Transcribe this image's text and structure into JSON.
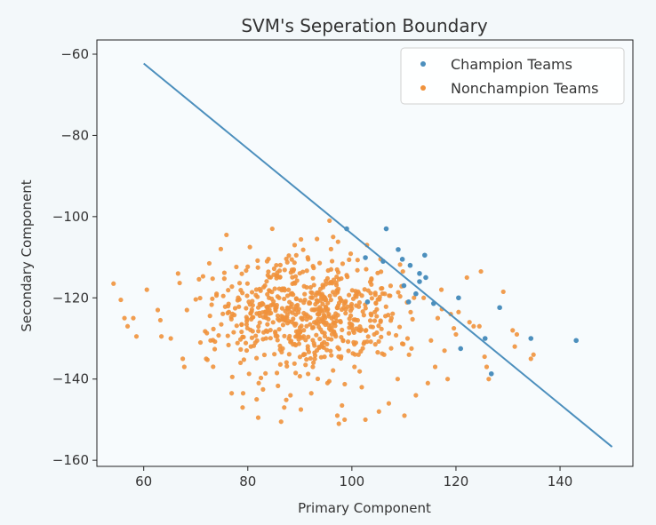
{
  "colors": {
    "background": "#f3f8fa",
    "champion": "#4c8fbd",
    "nonchampion": "#f0923c",
    "boundary": "#4c8fbd"
  },
  "chart_data": {
    "type": "scatter",
    "title": "SVM's Seperation Boundary",
    "xlabel": "Primary Component",
    "ylabel": "Secondary Component",
    "xlim": [
      51,
      154
    ],
    "ylim": [
      -161.5,
      -56.5
    ],
    "xticks": [
      60,
      80,
      100,
      120,
      140
    ],
    "yticks": [
      -60,
      -80,
      -100,
      -120,
      -140,
      -160
    ],
    "grid": false,
    "legend": "top-right",
    "legend_entries": [
      "Champion Teams",
      "Nonchampion Teams"
    ],
    "boundary_line": {
      "x": [
        60,
        150
      ],
      "y": [
        -62.3,
        -156.7
      ]
    },
    "series": [
      {
        "name": "Champion Teams",
        "points": [
          [
            99,
            -103
          ],
          [
            106.6,
            -103
          ],
          [
            102.6,
            -110.1
          ],
          [
            108.9,
            -108.1
          ],
          [
            109.7,
            -110.5
          ],
          [
            114,
            -109.5
          ],
          [
            106,
            -111
          ],
          [
            111.2,
            -112
          ],
          [
            113,
            -114
          ],
          [
            114.2,
            -115
          ],
          [
            110,
            -117
          ],
          [
            112.3,
            -119
          ],
          [
            115.7,
            -121.4
          ],
          [
            120.5,
            -120
          ],
          [
            110.9,
            -121
          ],
          [
            103,
            -121
          ],
          [
            128.4,
            -122.4
          ],
          [
            125.6,
            -130
          ],
          [
            120.9,
            -132.5
          ],
          [
            126.8,
            -138.7
          ],
          [
            134.4,
            -130
          ],
          [
            143.1,
            -130.5
          ],
          [
            113,
            -116
          ]
        ]
      },
      {
        "name": "Nonchampion Teams",
        "generator": "scatter cloud centred near (92, -124), spread x 54–135, y -151 to -101",
        "points": [
          [
            54.2,
            -116.5
          ],
          [
            55.6,
            -120.5
          ],
          [
            56.3,
            -125
          ],
          [
            56.9,
            -127
          ],
          [
            58,
            -125
          ],
          [
            58.6,
            -129.5
          ],
          [
            60.6,
            -118
          ],
          [
            62.7,
            -123
          ],
          [
            63.2,
            -125.5
          ],
          [
            63.4,
            -129.5
          ],
          [
            65.2,
            -130
          ],
          [
            66.6,
            -114
          ],
          [
            67.5,
            -135
          ],
          [
            67.8,
            -137
          ],
          [
            68.3,
            -123
          ],
          [
            70.9,
            -131
          ],
          [
            72,
            -135
          ],
          [
            72.6,
            -111.5
          ],
          [
            74,
            -119
          ],
          [
            75.9,
            -104.5
          ],
          [
            76.9,
            -143.5
          ],
          [
            78.6,
            -136
          ],
          [
            79,
            -147
          ],
          [
            79.1,
            -143.5
          ],
          [
            80.4,
            -107.5
          ],
          [
            81.7,
            -145
          ],
          [
            82,
            -149.5
          ],
          [
            82.1,
            -141
          ],
          [
            83.7,
            -111
          ],
          [
            84.7,
            -103
          ],
          [
            85.6,
            -138.5
          ],
          [
            86.4,
            -150.5
          ],
          [
            87,
            -147
          ],
          [
            88.2,
            -144
          ],
          [
            89,
            -107
          ],
          [
            89.2,
            -138.5
          ],
          [
            90.2,
            -147.5
          ],
          [
            91.6,
            -110.5
          ],
          [
            92.2,
            -143.5
          ],
          [
            92.5,
            -137
          ],
          [
            93.3,
            -105.5
          ],
          [
            94.3,
            -132
          ],
          [
            95.7,
            -101
          ],
          [
            96,
            -113
          ],
          [
            96.4,
            -105
          ],
          [
            96.8,
            -129
          ],
          [
            97.2,
            -149
          ],
          [
            97.5,
            -151
          ],
          [
            98.1,
            -146.5
          ],
          [
            98.6,
            -150
          ],
          [
            99.9,
            -126.5
          ],
          [
            100.5,
            -137
          ],
          [
            101.9,
            -142
          ],
          [
            102.6,
            -150
          ],
          [
            102.9,
            -107
          ],
          [
            104.3,
            -129
          ],
          [
            105.2,
            -148
          ],
          [
            106.2,
            -134
          ],
          [
            107.1,
            -146
          ],
          [
            107.6,
            -125
          ],
          [
            108.8,
            -140
          ],
          [
            109.8,
            -113.5
          ],
          [
            110.1,
            -149
          ],
          [
            110.7,
            -130
          ],
          [
            112.3,
            -144
          ],
          [
            113.8,
            -120
          ],
          [
            114.6,
            -141
          ],
          [
            115.2,
            -130.5
          ],
          [
            116,
            -137
          ],
          [
            116.5,
            -125
          ],
          [
            117.2,
            -118
          ],
          [
            117.8,
            -133
          ],
          [
            118.4,
            -140
          ],
          [
            119,
            -124
          ],
          [
            119.6,
            -127.5
          ],
          [
            120,
            -129
          ],
          [
            120.5,
            -123.5
          ],
          [
            122.1,
            -115
          ],
          [
            122.6,
            -126
          ],
          [
            123.4,
            -127
          ],
          [
            124.5,
            -127
          ],
          [
            124.8,
            -113.5
          ],
          [
            125.5,
            -134.5
          ],
          [
            125.9,
            -137
          ],
          [
            126.3,
            -140
          ],
          [
            129.1,
            -118.5
          ],
          [
            130.9,
            -128
          ],
          [
            131.3,
            -132
          ],
          [
            131.7,
            -129
          ],
          [
            134.4,
            -135
          ],
          [
            134.9,
            -134
          ]
        ]
      }
    ]
  }
}
